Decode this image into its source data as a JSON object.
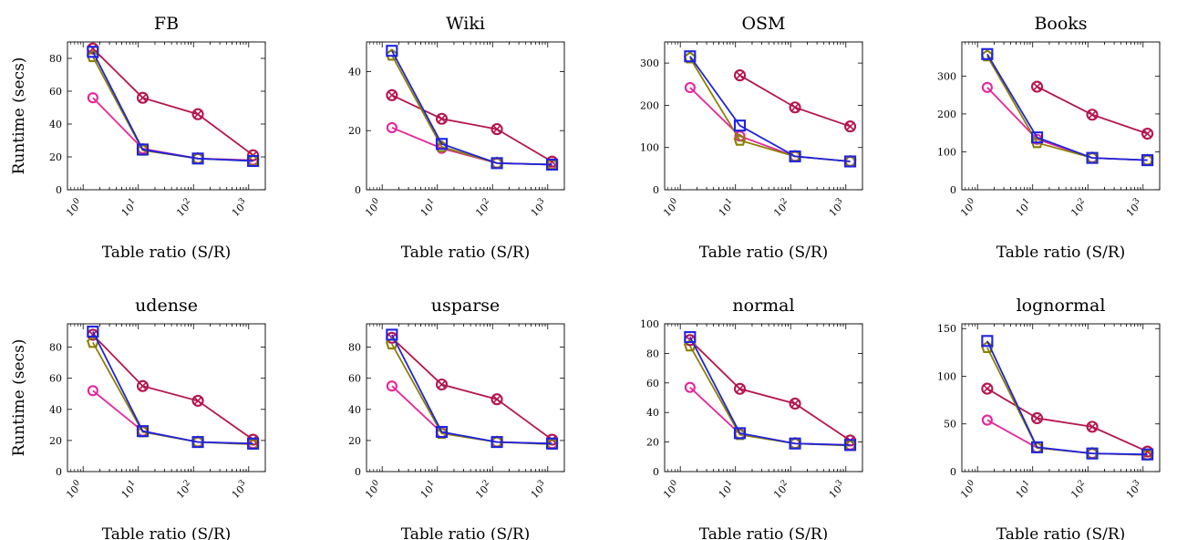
{
  "legend_colors": {
    "pink": "#e8259a",
    "crimson": "#b5154e",
    "olive": "#8c8000",
    "blue": "#1f23e0"
  },
  "shared": {
    "x": [
      1.5,
      12,
      120,
      1200
    ],
    "xticks": [
      1,
      10,
      100,
      1000
    ],
    "xtick_labels": [
      "10^0",
      "10^1",
      "10^2",
      "10^3"
    ],
    "xlabel": "Table ratio (S/R)",
    "ylabel": "Runtime (secs)",
    "xscale": "log"
  },
  "chart_data": [
    {
      "type": "line",
      "title": "FB",
      "ylim": [
        0,
        90
      ],
      "yticks": [
        0,
        20,
        40,
        60,
        80
      ],
      "xlabel": "Table ratio (S/R)",
      "ylabel": "Runtime (secs)",
      "series": [
        {
          "color": "#e8259a",
          "marker": "circle",
          "values": [
            56,
            25,
            19,
            18
          ]
        },
        {
          "color": "#b5154e",
          "marker": "circle-x",
          "values": [
            86,
            56,
            46,
            21
          ]
        },
        {
          "color": "#8c8000",
          "marker": "pentagon",
          "values": [
            81,
            24,
            19,
            17.5
          ]
        },
        {
          "color": "#1f23e0",
          "marker": "square",
          "values": [
            84,
            24.5,
            19,
            17.5
          ]
        }
      ]
    },
    {
      "type": "line",
      "title": "Wiki",
      "ylim": [
        0,
        50
      ],
      "yticks": [
        0,
        20,
        40
      ],
      "xlabel": "Table ratio (S/R)",
      "ylabel": "",
      "series": [
        {
          "color": "#e8259a",
          "marker": "circle",
          "values": [
            21,
            14,
            9,
            8.5
          ]
        },
        {
          "color": "#b5154e",
          "marker": "circle-x",
          "values": [
            32,
            24,
            20.5,
            9.5
          ]
        },
        {
          "color": "#8c8000",
          "marker": "pentagon",
          "values": [
            45.5,
            14.5,
            9,
            8.5
          ]
        },
        {
          "color": "#1f23e0",
          "marker": "square",
          "values": [
            47,
            15.5,
            9,
            8.5
          ]
        }
      ]
    },
    {
      "type": "line",
      "title": "OSM",
      "ylim": [
        0,
        350
      ],
      "yticks": [
        0,
        100,
        200,
        300
      ],
      "xlabel": "Table ratio (S/R)",
      "ylabel": "",
      "series": [
        {
          "color": "#e8259a",
          "marker": "circle",
          "values": [
            242,
            127,
            79,
            67
          ]
        },
        {
          "color": "#b5154e",
          "marker": "circle-x",
          "values": [
            null,
            271,
            195,
            150
          ]
        },
        {
          "color": "#8c8000",
          "marker": "pentagon",
          "values": [
            312,
            117,
            79,
            67
          ]
        },
        {
          "color": "#1f23e0",
          "marker": "square",
          "values": [
            316,
            152,
            79,
            67
          ]
        }
      ]
    },
    {
      "type": "line",
      "title": "Books",
      "ylim": [
        0,
        390
      ],
      "yticks": [
        0,
        100,
        200,
        300
      ],
      "xlabel": "Table ratio (S/R)",
      "ylabel": "",
      "series": [
        {
          "color": "#e8259a",
          "marker": "circle",
          "values": [
            270,
            133,
            84,
            78
          ]
        },
        {
          "color": "#b5154e",
          "marker": "circle-x",
          "values": [
            null,
            272,
            198,
            148
          ]
        },
        {
          "color": "#8c8000",
          "marker": "pentagon",
          "values": [
            353,
            124,
            84,
            78
          ]
        },
        {
          "color": "#1f23e0",
          "marker": "square",
          "values": [
            358,
            138,
            84,
            78
          ]
        }
      ]
    },
    {
      "type": "line",
      "title": "udense",
      "ylim": [
        0,
        95
      ],
      "yticks": [
        0,
        20,
        40,
        60,
        80
      ],
      "xlabel": "Table ratio (S/R)",
      "ylabel": "Runtime (secs)",
      "series": [
        {
          "color": "#e8259a",
          "marker": "circle",
          "values": [
            52,
            26,
            19,
            18
          ]
        },
        {
          "color": "#b5154e",
          "marker": "circle-x",
          "values": [
            88,
            55,
            45.5,
            20.5
          ]
        },
        {
          "color": "#8c8000",
          "marker": "pentagon",
          "values": [
            83,
            25.5,
            19,
            17.5
          ]
        },
        {
          "color": "#1f23e0",
          "marker": "square",
          "values": [
            90,
            26,
            19,
            18
          ]
        }
      ]
    },
    {
      "type": "line",
      "title": "usparse",
      "ylim": [
        0,
        95
      ],
      "yticks": [
        0,
        20,
        40,
        60,
        80
      ],
      "xlabel": "Table ratio (S/R)",
      "ylabel": "",
      "series": [
        {
          "color": "#e8259a",
          "marker": "circle",
          "values": [
            55,
            25,
            19,
            18
          ]
        },
        {
          "color": "#b5154e",
          "marker": "circle-x",
          "values": [
            86,
            56,
            46.5,
            20.5
          ]
        },
        {
          "color": "#8c8000",
          "marker": "pentagon",
          "values": [
            82,
            24.5,
            19,
            17.5
          ]
        },
        {
          "color": "#1f23e0",
          "marker": "square",
          "values": [
            88,
            25.5,
            19,
            18
          ]
        }
      ]
    },
    {
      "type": "line",
      "title": "normal",
      "ylim": [
        0,
        100
      ],
      "yticks": [
        0,
        20,
        40,
        60,
        80,
        100
      ],
      "xlabel": "Table ratio (S/R)",
      "ylabel": "",
      "series": [
        {
          "color": "#e8259a",
          "marker": "circle",
          "values": [
            57,
            25.5,
            19,
            18
          ]
        },
        {
          "color": "#b5154e",
          "marker": "circle-x",
          "values": [
            89,
            56,
            46,
            21
          ]
        },
        {
          "color": "#8c8000",
          "marker": "pentagon",
          "values": [
            85,
            25,
            19,
            17.5
          ]
        },
        {
          "color": "#1f23e0",
          "marker": "square",
          "values": [
            91,
            26,
            19,
            18
          ]
        }
      ]
    },
    {
      "type": "line",
      "title": "lognormal",
      "ylim": [
        0,
        155
      ],
      "yticks": [
        0,
        50,
        100,
        150
      ],
      "xlabel": "Table ratio (S/R)",
      "ylabel": "",
      "series": [
        {
          "color": "#e8259a",
          "marker": "circle",
          "values": [
            54,
            25,
            19,
            17.5
          ]
        },
        {
          "color": "#b5154e",
          "marker": "circle-x",
          "values": [
            87,
            56,
            47,
            21
          ]
        },
        {
          "color": "#8c8000",
          "marker": "pentagon",
          "values": [
            130,
            25,
            19,
            17.5
          ]
        },
        {
          "color": "#1f23e0",
          "marker": "square",
          "values": [
            137,
            25.5,
            19,
            18
          ]
        }
      ]
    }
  ]
}
